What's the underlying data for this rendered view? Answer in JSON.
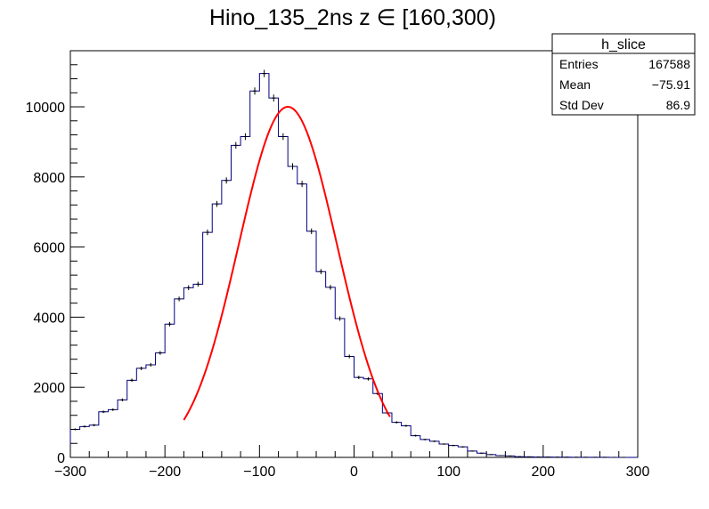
{
  "chart_data": {
    "type": "histogram",
    "title": "Hino_135_2ns z  ∈ [160,300)",
    "xlabel": "",
    "ylabel": "",
    "xlim": [
      -300,
      300
    ],
    "ylim": [
      0,
      11600
    ],
    "x_ticks": [
      -300,
      -200,
      -100,
      0,
      100,
      200,
      300
    ],
    "x_tick_labels": [
      "−300",
      "−200",
      "−100",
      "0",
      "100",
      "200",
      "300"
    ],
    "y_ticks": [
      0,
      2000,
      4000,
      6000,
      8000,
      10000
    ],
    "y_tick_labels": [
      "0",
      "2000",
      "4000",
      "6000",
      "8000",
      "10000"
    ],
    "bin_width": 10,
    "bin_start": -300,
    "counts": [
      800,
      880,
      920,
      1300,
      1360,
      1640,
      2200,
      2540,
      2640,
      2980,
      3800,
      4520,
      4840,
      4940,
      6420,
      7230,
      7900,
      8900,
      9150,
      10450,
      10950,
      10250,
      9150,
      8300,
      7800,
      6450,
      5300,
      4850,
      3960,
      2880,
      2280,
      2240,
      1820,
      1270,
      1000,
      900,
      620,
      510,
      460,
      380,
      340,
      300,
      180,
      120,
      80,
      50,
      40,
      20,
      15,
      10,
      8,
      6,
      5,
      4,
      3,
      2,
      2,
      1,
      1,
      0
    ],
    "series": [
      {
        "name": "h_slice",
        "color": "#000080"
      },
      {
        "name": "fit",
        "type": "gaussian",
        "color": "#ff0000",
        "constant": 10000,
        "mean": -70,
        "sigma": 52,
        "range": [
          -180,
          38
        ]
      }
    ],
    "stats": {
      "title": "h_slice",
      "rows": [
        {
          "label": "Entries",
          "value": "167588"
        },
        {
          "label": "Mean",
          "value": "−75.91"
        },
        {
          "label": "Std Dev",
          "value": "86.9"
        }
      ]
    }
  }
}
